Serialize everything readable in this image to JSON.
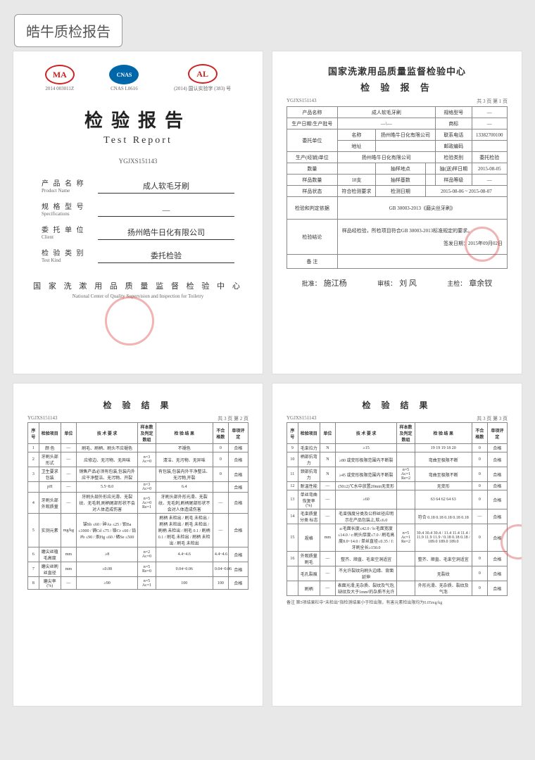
{
  "header": "皓牛质检报告",
  "page1": {
    "logos": {
      "ma": "MA",
      "ma_code": "2014 003011Z",
      "cnas": "CNAS",
      "cnas_code": "CNAS L0616",
      "al": "AL",
      "al_code": "(2014) 国认实验字 (383) 号"
    },
    "title_cn": "检验报告",
    "title_en": "Test Report",
    "ref_no": "YGJXS151143",
    "fields": {
      "f1_cn": "产 品 名 称",
      "f1_en": "Product Name",
      "f1_val": "成人软毛牙刷",
      "f2_cn": "规 格 型 号",
      "f2_en": "Specifications",
      "f2_val": "—",
      "f3_cn": "委 托 单 位",
      "f3_en": "Client",
      "f3_val": "扬州皓牛日化有限公司",
      "f4_cn": "检 验 类 别",
      "f4_en": "Test Kind",
      "f4_val": "委托检验"
    },
    "center_cn": "国 家 洗 漱 用 品 质 量 监 督 检 验 中 心",
    "center_en": "National Center of Quality Supervision and Inspection for Toiletry"
  },
  "page2": {
    "title1": "国家洗漱用品质量监督检验中心",
    "title2": "检 验 报 告",
    "ref": "YGJXS151143",
    "page_num": "共 3 页 第 1 页",
    "rows": [
      [
        "产品名称",
        "成人软毛牙刷",
        "规格型号",
        "—"
      ],
      [
        "生产日期\\生产批号",
        "—\\—",
        "商标",
        "—"
      ],
      [
        "委托单位 名称",
        "扬州皓牛日化有限公司",
        "联系电话",
        "13382700100"
      ],
      [
        "地址",
        "",
        "邮政编码",
        ""
      ],
      [
        "生产(经销)单位",
        "扬州皓牛日化有限公司",
        "检验类别",
        "委托检验"
      ],
      [
        "数量",
        "",
        "抽样地点",
        "",
        "抽(送)样日期",
        "2015-08-05"
      ],
      [
        "样品数量",
        "18支",
        "抽样基数",
        "",
        "样品等级",
        "—"
      ],
      [
        "样品状态",
        "符合检测要求",
        "检测日期",
        "2015-08-06 ~ 2015-08-07"
      ]
    ],
    "basis_label": "检验和判定依据",
    "basis_val": "GB 30003-2013《磨尖丝牙刷》",
    "conclusion_label": "检验结论",
    "conclusion_val": "样品经检验，所检项目符合GB 30003-2013标准规定的要求。",
    "issue_date_label": "签发日期：",
    "issue_date": "2015年09月02日",
    "remark_label": "备 注",
    "sig": {
      "l1": "批准：",
      "v1": "施江杨",
      "l2": "审核：",
      "v2": "刘 风",
      "l3": "主检：",
      "v3": "章余钗"
    }
  },
  "page3": {
    "title": "检 验 结 果",
    "ref": "YGJXS151143",
    "page_num": "共 3 页 第 2 页",
    "headers": [
      "序号",
      "检验项目",
      "单位",
      "技 术 要 求",
      "样本数及判定数组",
      "检 验 结 果",
      "不合格数",
      "单项评定"
    ],
    "rows": [
      [
        "1",
        "颜 色",
        "—",
        "刷毛、刷柄、刷头不应褪色",
        "",
        "不褪色",
        "0",
        "合格"
      ],
      [
        "2",
        "牙刷头部形式",
        "—",
        "应修边、无污物、无异味",
        "n=3 Ac=0",
        "清洁、无污物、无异味",
        "0",
        "合格"
      ],
      [
        "3",
        "卫生要求 包装",
        "—",
        "销售产品必须有包装,包装内外应干净整洁、无污物、开裂",
        "",
        "有包装,包装内外干净整洁、无污物,开裂",
        "0",
        "合格"
      ],
      [
        "",
        "pH",
        "—",
        "5.5~8.0",
        "n=3 Ac=0",
        "6.4",
        "",
        "合格"
      ],
      [
        "4",
        "牙刷头部外观质量",
        "—",
        "牙刷头部外形应光滑、无裂纹、无毛刺,刷柄尾部形状不会对人体造成伤害",
        "n=5 Ac=0 Re=1",
        "牙刷头部外形光滑、无裂纹、无毛刺,刷柄尾部形状不会对人体造成伤害",
        "—",
        "合格"
      ],
      [
        "5",
        "实测元素",
        "mg/kg",
        "锑Sb ≤60 / 砷As ≤25 / 钡Ba ≤1000 / 镉Cd ≤75 / 铬Cr ≤60 / 铅Pb ≤90 / 汞Hg ≤60 / 硒Se ≤500",
        "",
        "刷柄 未检出 / 刷毛 未检出 / 刷柄 未检出 / 刷毛 未检出 / 刷柄 未检出 / 刷毛 0.1 / 刷柄 0.1 / 刷毛 未检出 / 刷柄 未检出 / 刷毛 未检出",
        "—",
        "合格"
      ],
      [
        "6",
        "磨尖丝植毛高度",
        "mm",
        "≥8",
        "n=2 Ac=0",
        "4.4~4.6",
        "4.4~4.6",
        "合格"
      ],
      [
        "7",
        "磨尖丝刷丝直径",
        "mm",
        "≤0.08",
        "n=5 Re=0",
        "0.04~0.06",
        "0.04~0.06",
        "合格"
      ],
      [
        "8",
        "磨尖率(%)",
        "—",
        "≥90",
        "n=5 Ac=1",
        "100",
        "100",
        "合格"
      ]
    ]
  },
  "page4": {
    "title": "检 验 结 果",
    "ref": "YGJXS151143",
    "page_num": "共 3 页 第 3 页",
    "headers": [
      "序号",
      "检验项目",
      "单位",
      "技 术 要 求",
      "样本数及判定数组",
      "检 验 结 果",
      "不合格数",
      "单项评定"
    ],
    "rows": [
      [
        "9",
        "毛束拉力",
        "N",
        "≥15",
        "",
        "19  19  19  18  20",
        "0",
        "合格"
      ],
      [
        "10",
        "柄部抗弯力",
        "N",
        "≥80 或变形极限范围内不断裂",
        "",
        "弯曲至极限不断",
        "0",
        "合格"
      ],
      [
        "11",
        "颈部抗弯力",
        "N",
        "≥45 或变形极限范围内不断裂",
        "n=5 Ac=1 Re=2",
        "弯曲至极限不断",
        "0",
        "合格"
      ],
      [
        "12",
        "耐温性能",
        "—",
        "(50±2)℃水中放置20min无变形",
        "",
        "无变形",
        "0",
        "合格"
      ],
      [
        "13",
        "单丝弯曲恢复率(%)",
        "—",
        "≥60",
        "",
        "63  64  62  64  63",
        "0",
        "合格"
      ],
      [
        "14",
        "毛束质量分类 标志",
        "—",
        "毛束强度分类及公称丝径应明示在产品包装上,软≤6.0",
        "",
        "符合 0.18 0.18 0.18 0.18 0.18",
        "—",
        "合格"
      ],
      [
        "15",
        "规格",
        "mm",
        "a:毛面长度≤42.0 / b:毛面宽度≤14.0 / c:刷头厚度≤7.0 / 刷毛高度8.0~14.0 / 单丝直径≤0.35 / f:牙刷全长≥150.0",
        "n=5 Ac=1 Re=2",
        "30.4 30.4 30.4 / 11.4 11.4 11.4 / 11.9 11.9 11.9 / 0.18 0.18 0.18 / 189.0 189.0 189.0",
        "0",
        "合格"
      ],
      [
        "16",
        "外观质量 刷毛",
        "—",
        "整齐、顺直、毛束空洞适宜",
        "",
        "整齐、顺直、毛束空洞适宜",
        "0",
        "合格"
      ],
      [
        "",
        "毛孔裂痕",
        "—",
        "不允许裂纹向刷头边缘、背面延伸",
        "",
        "无裂纹",
        "0",
        "合格"
      ],
      [
        "",
        "刷柄",
        "—",
        "表面光滑,无杂质、裂纹及气泡,缺纹及大于1mm²的杂质不允许",
        "",
        "外形光滑、无杂质、裂纹及气泡",
        "0",
        "合格"
      ]
    ],
    "note": "备注   第5项结果栏中\"未检出\"指检测结果小于检出限，有害元素检出限均为0.05mg/kg"
  },
  "colors": {
    "bg": "#e8e8e8",
    "page": "#ffffff",
    "border": "#888888",
    "stamp": "#d44",
    "logo_red": "#c22",
    "logo_blue": "#06a"
  }
}
